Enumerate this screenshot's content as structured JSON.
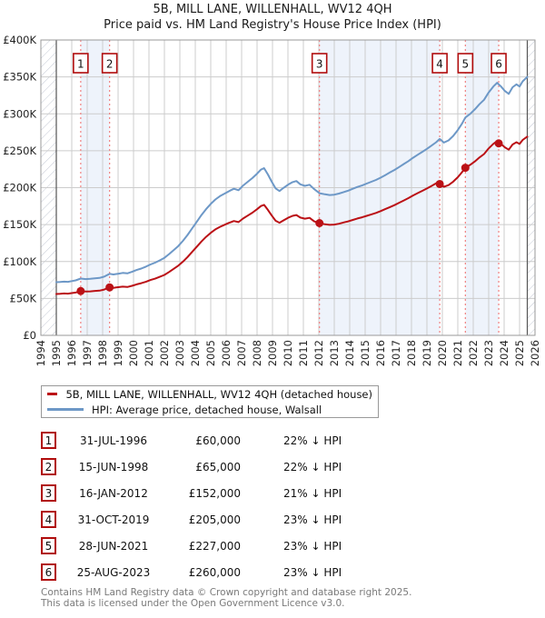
{
  "title": "5B, MILL LANE, WILLENHALL, WV12 4QH",
  "subtitle": "Price paid vs. HM Land Registry's House Price Index (HPI)",
  "colors": {
    "property_line": "#bb1116",
    "hpi_line": "#6d98c7",
    "sale_marker_box_border": "#b00c0c",
    "sale_dashed_line": "#f08080",
    "ownership_band": "#eef3fb",
    "gridline": "#cccccc",
    "plot_border": "#999999",
    "data_edge_line": "#555555",
    "hatch_line": "#c4c9d4",
    "footer_text": "#7a7a7a"
  },
  "chart_data": {
    "type": "line",
    "title": "5B, MILL LANE, WILLENHALL, WV12 4QH — Price paid vs. HPI",
    "xlabel": "",
    "ylabel": "",
    "x_range": [
      1994,
      2026
    ],
    "y_range_gbp": [
      0,
      400000
    ],
    "grid": true,
    "values_unit": "GBP thousands",
    "x_ticks": [
      1994,
      1995,
      1996,
      1997,
      1998,
      1999,
      2000,
      2001,
      2002,
      2003,
      2004,
      2005,
      2006,
      2007,
      2008,
      2009,
      2010,
      2011,
      2012,
      2013,
      2014,
      2015,
      2016,
      2017,
      2018,
      2019,
      2020,
      2021,
      2022,
      2023,
      2024,
      2025,
      2026
    ],
    "y_ticks": [
      [
        0,
        "£0"
      ],
      [
        50,
        "£50K"
      ],
      [
        100,
        "£100K"
      ],
      [
        150,
        "£150K"
      ],
      [
        200,
        "£200K"
      ],
      [
        250,
        "£250K"
      ],
      [
        300,
        "£300K"
      ],
      [
        350,
        "£350K"
      ],
      [
        400,
        "£400K"
      ]
    ],
    "data_start": 1995.0,
    "data_end": 2025.5,
    "ownership_bands": [
      [
        1996.58,
        1998.45
      ],
      [
        2012.04,
        2019.83
      ],
      [
        2021.49,
        2023.65
      ]
    ],
    "sales": [
      {
        "label": "1",
        "x": 1996.58,
        "price_k": 60
      },
      {
        "label": "2",
        "x": 1998.45,
        "price_k": 65
      },
      {
        "label": "3",
        "x": 2012.04,
        "price_k": 152
      },
      {
        "label": "4",
        "x": 2019.83,
        "price_k": 205
      },
      {
        "label": "5",
        "x": 2021.49,
        "price_k": 227
      },
      {
        "label": "6",
        "x": 2023.65,
        "price_k": 260
      }
    ],
    "series": [
      {
        "name": "5B, MILL LANE, WILLENHALL, WV12 4QH (detached house)",
        "color": "#bb1116",
        "points": [
          [
            1995.0,
            56
          ],
          [
            1995.25,
            56.3
          ],
          [
            1995.5,
            56.8
          ],
          [
            1995.75,
            56.5
          ],
          [
            1996.0,
            57.2
          ],
          [
            1996.25,
            58
          ],
          [
            1996.58,
            60
          ],
          [
            1996.9,
            59.4
          ],
          [
            1997.2,
            59.6
          ],
          [
            1997.5,
            60.2
          ],
          [
            1997.8,
            60.6
          ],
          [
            1998.1,
            62
          ],
          [
            1998.45,
            65
          ],
          [
            1998.7,
            64.4
          ],
          [
            1999.0,
            65.2
          ],
          [
            1999.3,
            66
          ],
          [
            1999.6,
            65.5
          ],
          [
            1999.9,
            67.1
          ],
          [
            2000.2,
            69
          ],
          [
            2000.5,
            70.6
          ],
          [
            2000.8,
            72.5
          ],
          [
            2001.1,
            74.9
          ],
          [
            2001.4,
            76.8
          ],
          [
            2001.7,
            79.2
          ],
          [
            2002.0,
            81.9
          ],
          [
            2002.3,
            85.8
          ],
          [
            2002.6,
            90.1
          ],
          [
            2002.9,
            94.4
          ],
          [
            2003.2,
            99.8
          ],
          [
            2003.5,
            106.1
          ],
          [
            2003.8,
            113.1
          ],
          [
            2004.1,
            120.1
          ],
          [
            2004.4,
            127.1
          ],
          [
            2004.7,
            133.4
          ],
          [
            2005.0,
            138.8
          ],
          [
            2005.3,
            143.5
          ],
          [
            2005.6,
            147
          ],
          [
            2005.9,
            149.8
          ],
          [
            2006.2,
            152.5
          ],
          [
            2006.5,
            154.8
          ],
          [
            2006.8,
            153.3
          ],
          [
            2007.1,
            158.3
          ],
          [
            2007.4,
            162.2
          ],
          [
            2007.7,
            166.1
          ],
          [
            2008.0,
            170.8
          ],
          [
            2008.25,
            175.1
          ],
          [
            2008.45,
            176.7
          ],
          [
            2008.7,
            170
          ],
          [
            2008.95,
            162.2
          ],
          [
            2009.2,
            155.2
          ],
          [
            2009.45,
            152.5
          ],
          [
            2009.7,
            155.6
          ],
          [
            2010.0,
            159.1
          ],
          [
            2010.3,
            161.9
          ],
          [
            2010.55,
            163
          ],
          [
            2010.8,
            159.5
          ],
          [
            2011.1,
            158
          ],
          [
            2011.4,
            159.1
          ],
          [
            2011.7,
            154.4
          ],
          [
            2012.04,
            152
          ],
          [
            2012.4,
            150.4
          ],
          [
            2012.7,
            149.6
          ],
          [
            2013.0,
            150
          ],
          [
            2013.3,
            151.2
          ],
          [
            2013.6,
            152.8
          ],
          [
            2013.9,
            154.4
          ],
          [
            2014.2,
            156.3
          ],
          [
            2014.5,
            158.3
          ],
          [
            2014.8,
            159.9
          ],
          [
            2015.1,
            161.8
          ],
          [
            2015.4,
            163.8
          ],
          [
            2015.7,
            165.8
          ],
          [
            2016.0,
            168.2
          ],
          [
            2016.3,
            170.9
          ],
          [
            2016.6,
            173.7
          ],
          [
            2016.9,
            176.4
          ],
          [
            2017.2,
            179.6
          ],
          [
            2017.5,
            182.7
          ],
          [
            2017.8,
            185.9
          ],
          [
            2018.1,
            189.4
          ],
          [
            2018.4,
            192.6
          ],
          [
            2018.7,
            195.7
          ],
          [
            2019.0,
            198.9
          ],
          [
            2019.3,
            202.4
          ],
          [
            2019.6,
            206
          ],
          [
            2019.83,
            205
          ],
          [
            2020.1,
            201.2
          ],
          [
            2020.4,
            203.5
          ],
          [
            2020.7,
            208.1
          ],
          [
            2021.0,
            214.2
          ],
          [
            2021.25,
            220.4
          ],
          [
            2021.49,
            227
          ],
          [
            2021.8,
            230.9
          ],
          [
            2022.1,
            235.5
          ],
          [
            2022.4,
            240.9
          ],
          [
            2022.7,
            245.5
          ],
          [
            2023.0,
            253.2
          ],
          [
            2023.3,
            259.3
          ],
          [
            2023.55,
            263.2
          ],
          [
            2023.65,
            260
          ],
          [
            2023.8,
            259.2
          ],
          [
            2024.05,
            254.6
          ],
          [
            2024.3,
            251.5
          ],
          [
            2024.55,
            258.5
          ],
          [
            2024.8,
            261.5
          ],
          [
            2025.0,
            259.2
          ],
          [
            2025.2,
            264.6
          ],
          [
            2025.5,
            269.2
          ]
        ]
      },
      {
        "name": "HPI: Average price, detached house, Walsall",
        "color": "#6d98c7",
        "points": [
          [
            1995.0,
            72
          ],
          [
            1995.25,
            72.3
          ],
          [
            1995.5,
            72.8
          ],
          [
            1995.75,
            72.5
          ],
          [
            1996.0,
            73.5
          ],
          [
            1996.25,
            74.5
          ],
          [
            1996.58,
            76.9
          ],
          [
            1996.9,
            76.2
          ],
          [
            1997.2,
            76.5
          ],
          [
            1997.5,
            77.2
          ],
          [
            1997.8,
            77.8
          ],
          [
            1998.1,
            79.5
          ],
          [
            1998.45,
            83.3
          ],
          [
            1998.7,
            82.5
          ],
          [
            1999.0,
            83.5
          ],
          [
            1999.3,
            84.5
          ],
          [
            1999.6,
            84
          ],
          [
            1999.9,
            86
          ],
          [
            2000.2,
            88.5
          ],
          [
            2000.5,
            90.5
          ],
          [
            2000.8,
            93
          ],
          [
            2001.1,
            96
          ],
          [
            2001.4,
            98.5
          ],
          [
            2001.7,
            101.5
          ],
          [
            2002.0,
            105
          ],
          [
            2002.3,
            110
          ],
          [
            2002.6,
            115.5
          ],
          [
            2002.9,
            121
          ],
          [
            2003.2,
            128
          ],
          [
            2003.5,
            136
          ],
          [
            2003.8,
            145
          ],
          [
            2004.1,
            154
          ],
          [
            2004.4,
            163
          ],
          [
            2004.7,
            171
          ],
          [
            2005.0,
            178
          ],
          [
            2005.3,
            184
          ],
          [
            2005.6,
            188.5
          ],
          [
            2005.9,
            192
          ],
          [
            2006.2,
            195.5
          ],
          [
            2006.5,
            198.5
          ],
          [
            2006.8,
            196.5
          ],
          [
            2007.1,
            203
          ],
          [
            2007.4,
            208
          ],
          [
            2007.7,
            213
          ],
          [
            2008.0,
            219
          ],
          [
            2008.25,
            224.5
          ],
          [
            2008.45,
            226.5
          ],
          [
            2008.7,
            218
          ],
          [
            2008.95,
            208
          ],
          [
            2009.2,
            199
          ],
          [
            2009.45,
            195.5
          ],
          [
            2009.7,
            199.5
          ],
          [
            2010.0,
            204
          ],
          [
            2010.3,
            207.5
          ],
          [
            2010.55,
            209
          ],
          [
            2010.8,
            204.5
          ],
          [
            2011.1,
            202.5
          ],
          [
            2011.4,
            204
          ],
          [
            2011.7,
            198
          ],
          [
            2012.04,
            192.5
          ],
          [
            2012.4,
            191
          ],
          [
            2012.7,
            190
          ],
          [
            2013.0,
            190.5
          ],
          [
            2013.3,
            192
          ],
          [
            2013.6,
            194
          ],
          [
            2013.9,
            196
          ],
          [
            2014.2,
            198.5
          ],
          [
            2014.5,
            201
          ],
          [
            2014.8,
            203
          ],
          [
            2015.1,
            205.5
          ],
          [
            2015.4,
            208
          ],
          [
            2015.7,
            210.5
          ],
          [
            2016.0,
            213.5
          ],
          [
            2016.3,
            217
          ],
          [
            2016.6,
            220.5
          ],
          [
            2016.9,
            224
          ],
          [
            2017.2,
            228
          ],
          [
            2017.5,
            232
          ],
          [
            2017.8,
            236
          ],
          [
            2018.1,
            240.5
          ],
          [
            2018.4,
            244.5
          ],
          [
            2018.7,
            248.5
          ],
          [
            2019.0,
            252.5
          ],
          [
            2019.3,
            257
          ],
          [
            2019.6,
            261.5
          ],
          [
            2019.83,
            266
          ],
          [
            2020.1,
            261
          ],
          [
            2020.4,
            264
          ],
          [
            2020.7,
            270
          ],
          [
            2021.0,
            278
          ],
          [
            2021.25,
            286
          ],
          [
            2021.49,
            295
          ],
          [
            2021.8,
            300
          ],
          [
            2022.1,
            306
          ],
          [
            2022.4,
            313
          ],
          [
            2022.7,
            319
          ],
          [
            2023.0,
            329
          ],
          [
            2023.3,
            337
          ],
          [
            2023.55,
            342
          ],
          [
            2023.8,
            337
          ],
          [
            2024.05,
            331
          ],
          [
            2024.3,
            327
          ],
          [
            2024.55,
            336
          ],
          [
            2024.8,
            340
          ],
          [
            2025.0,
            337
          ],
          [
            2025.2,
            344
          ],
          [
            2025.5,
            350
          ]
        ]
      }
    ],
    "legend_position": "below"
  },
  "legend": {
    "items": [
      {
        "label": "5B, MILL LANE, WILLENHALL, WV12 4QH (detached house)",
        "color": "#bb1116"
      },
      {
        "label": "HPI: Average price, detached house, Walsall",
        "color": "#6d98c7"
      }
    ]
  },
  "table": {
    "rows": [
      {
        "num": "1",
        "date": "31-JUL-1996",
        "price": "£60,000",
        "vs_hpi": "22% ↓ HPI"
      },
      {
        "num": "2",
        "date": "15-JUN-1998",
        "price": "£65,000",
        "vs_hpi": "22% ↓ HPI"
      },
      {
        "num": "3",
        "date": "16-JAN-2012",
        "price": "£152,000",
        "vs_hpi": "21% ↓ HPI"
      },
      {
        "num": "4",
        "date": "31-OCT-2019",
        "price": "£205,000",
        "vs_hpi": "23% ↓ HPI"
      },
      {
        "num": "5",
        "date": "28-JUN-2021",
        "price": "£227,000",
        "vs_hpi": "23% ↓ HPI"
      },
      {
        "num": "6",
        "date": "25-AUG-2023",
        "price": "£260,000",
        "vs_hpi": "23% ↓ HPI"
      }
    ]
  },
  "footer": {
    "line1": "Contains HM Land Registry data © Crown copyright and database right 2025.",
    "line2": "This data is licensed under the Open Government Licence v3.0."
  }
}
